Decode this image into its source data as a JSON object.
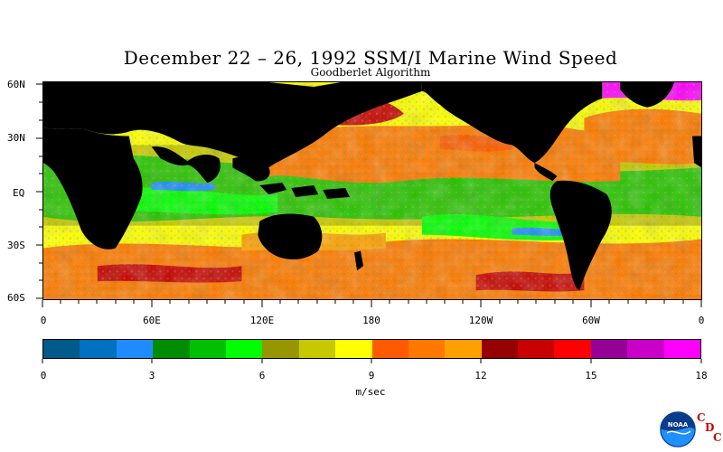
{
  "title": "December 22 – 26, 1992 SSM/I Marine Wind Speed",
  "subtitle": "Goodberlet Algorithm",
  "lat_labels": [
    "60N",
    "30N",
    "EQ",
    "30S",
    "60S"
  ],
  "lon_labels": [
    "0",
    "60E",
    "120E",
    "180",
    "120W",
    "60W",
    "0"
  ],
  "colorbar": {
    "colors": [
      "#005a8c",
      "#0070c0",
      "#1e8cff",
      "#008c00",
      "#00c000",
      "#00ff00",
      "#969600",
      "#c8c800",
      "#ffff00",
      "#ff5a00",
      "#ff7800",
      "#ffa000",
      "#960000",
      "#c80000",
      "#ff0000",
      "#960096",
      "#c800c8",
      "#ff00ff"
    ],
    "tick_labels": [
      "0",
      "3",
      "6",
      "9",
      "12",
      "15",
      "18"
    ],
    "unit": "m/sec"
  },
  "logo": {
    "text": "NOAA",
    "cdc_letters": [
      "C",
      "D",
      "C"
    ]
  }
}
